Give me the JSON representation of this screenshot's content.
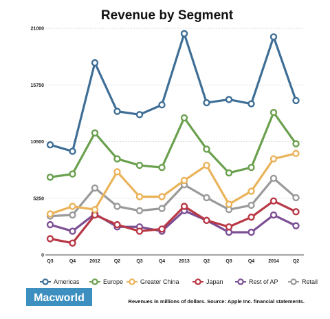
{
  "chart_data": {
    "type": "line",
    "title": "Revenue by Segment",
    "xlabel": "",
    "ylabel": "",
    "categories": [
      "Q3",
      "Q4",
      "2012",
      "Q2",
      "Q3",
      "Q4",
      "2013",
      "Q2",
      "Q3",
      "Q4",
      "2014",
      "Q2"
    ],
    "y_ticks": [
      0,
      5250,
      10500,
      15750,
      21000
    ],
    "y_tick_labels": [
      "0",
      "5250",
      "10500",
      "15750",
      "21000"
    ],
    "ylim": [
      0,
      21000
    ],
    "grid": "horizontal",
    "legend_position": "bottom",
    "series": [
      {
        "name": "Americas",
        "color": "#3e6e96",
        "values": [
          10200,
          9600,
          17800,
          13300,
          13000,
          13900,
          20500,
          14100,
          14400,
          14000,
          20200,
          14300
        ]
      },
      {
        "name": "Europe",
        "color": "#6aa04e",
        "values": [
          7200,
          7500,
          11300,
          8900,
          8300,
          8100,
          12700,
          9800,
          7600,
          8100,
          13200,
          10300
        ]
      },
      {
        "name": "Greater China",
        "color": "#eab35a",
        "values": [
          3800,
          4500,
          4200,
          7700,
          5400,
          5400,
          6900,
          8300,
          4700,
          5900,
          8900,
          9400
        ]
      },
      {
        "name": "Japan",
        "color": "#b83845",
        "values": [
          1500,
          1100,
          3700,
          2800,
          2200,
          2400,
          4500,
          3200,
          2600,
          3500,
          5000,
          4000
        ]
      },
      {
        "name": "Rest of AP",
        "color": "#7c4f94",
        "values": [
          2800,
          2200,
          3800,
          2600,
          2600,
          2200,
          4100,
          3200,
          2100,
          2100,
          3700,
          2700
        ]
      },
      {
        "name": "Retail",
        "color": "#9a9a9a",
        "values": [
          3600,
          3700,
          6200,
          4500,
          4100,
          4300,
          6500,
          5300,
          4200,
          4600,
          7100,
          5300
        ]
      }
    ]
  },
  "logo": "Macworld",
  "source_note": "Revenues in millions of dollars. Source: Apple Inc. financial statements.",
  "colors": {
    "logo_bg": "#3c8fbf",
    "grid": "#cfcfcf",
    "axis": "#444444"
  }
}
